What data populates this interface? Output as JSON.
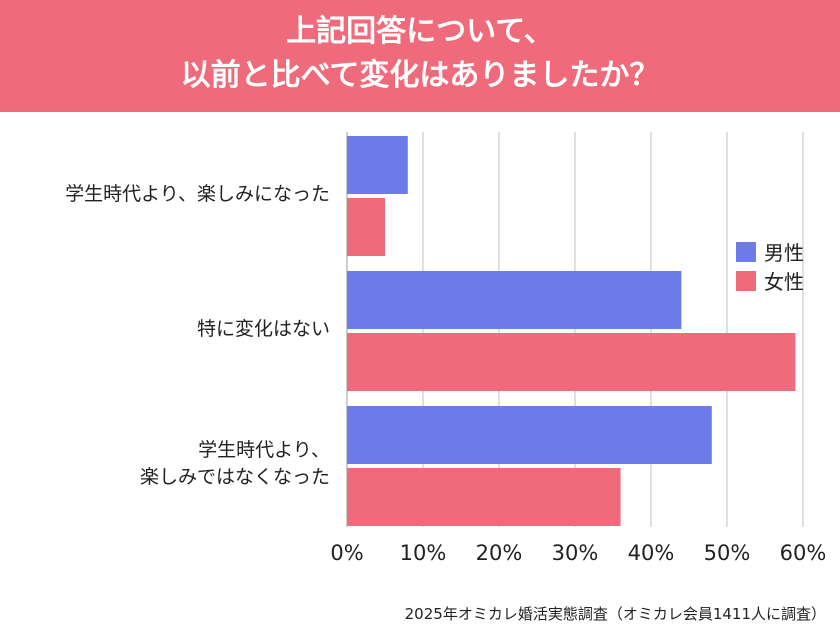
{
  "header": {
    "title_line1": "上記回答について、",
    "title_line2": "以前と比べて変化はありましたか？"
  },
  "chart_data": {
    "type": "bar",
    "orientation": "horizontal",
    "title": "上記回答について、以前と比べて変化はありましたか？",
    "categories": [
      [
        "学生時代より、楽しみになった"
      ],
      [
        "特に変化はない"
      ],
      [
        "学生時代より、",
        "楽しみではなくなった"
      ]
    ],
    "series": [
      {
        "name": "男性",
        "color": "#6e7cea",
        "values": [
          8,
          44,
          48
        ]
      },
      {
        "name": "女性",
        "color": "#ef6b7b",
        "values": [
          5,
          59,
          36
        ]
      }
    ],
    "x_ticks": [
      "0%",
      "10%",
      "20%",
      "30%",
      "40%",
      "50%",
      "60%"
    ],
    "xlim": [
      0,
      60
    ],
    "grid": true,
    "legend_position": "right"
  },
  "footer": {
    "source": "2025年オミカレ婚活実態調査（オミカレ会員1411人に調査）"
  }
}
